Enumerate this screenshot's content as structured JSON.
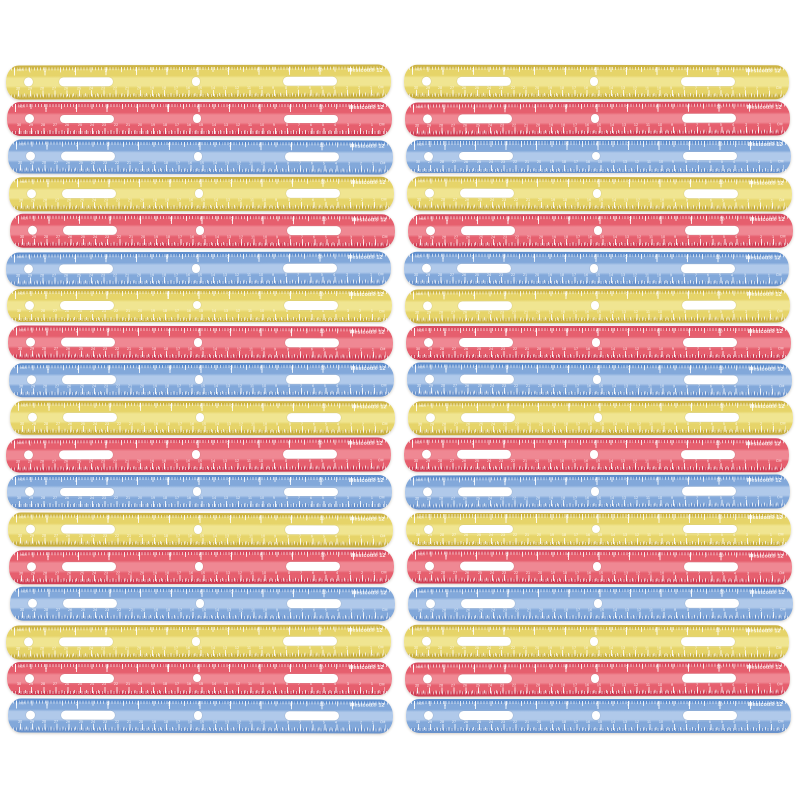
{
  "background": "#ffffff",
  "product": {
    "brand_label": "Westcott® 12",
    "unit_label_inch": "inch",
    "unit_label_cm": "CM"
  },
  "grid": {
    "columns": 2,
    "rows_per_column": 18,
    "total_rulers": 36,
    "color_sequence": [
      "yellow",
      "red",
      "blue"
    ]
  },
  "ruler_colors": {
    "yellow": {
      "edge": "#cdb445",
      "body": "#e6d469",
      "highlight": "#f0e591",
      "shadow": "#c7ae3f"
    },
    "red": {
      "edge": "#d84b60",
      "body": "#e65f6e",
      "highlight": "#ef8893",
      "shadow": "#cf3e54"
    },
    "blue": {
      "edge": "#5f8ecd",
      "body": "#82a8da",
      "highlight": "#b0c9ea",
      "shadow": "#6992cc"
    }
  },
  "scales": {
    "inch_numbers": [
      "1",
      "2",
      "3",
      "4",
      "5",
      "6",
      "7",
      "8",
      "9",
      "10",
      "11"
    ],
    "cm_numbers": [
      "30",
      "29",
      "28",
      "27",
      "26",
      "25",
      "24",
      "23",
      "22",
      "21",
      "20",
      "19",
      "18",
      "17",
      "16",
      "15",
      "14",
      "13",
      "12",
      "11",
      "10",
      "9",
      "8",
      "7",
      "6",
      "5",
      "4",
      "3",
      "2",
      "1"
    ]
  }
}
